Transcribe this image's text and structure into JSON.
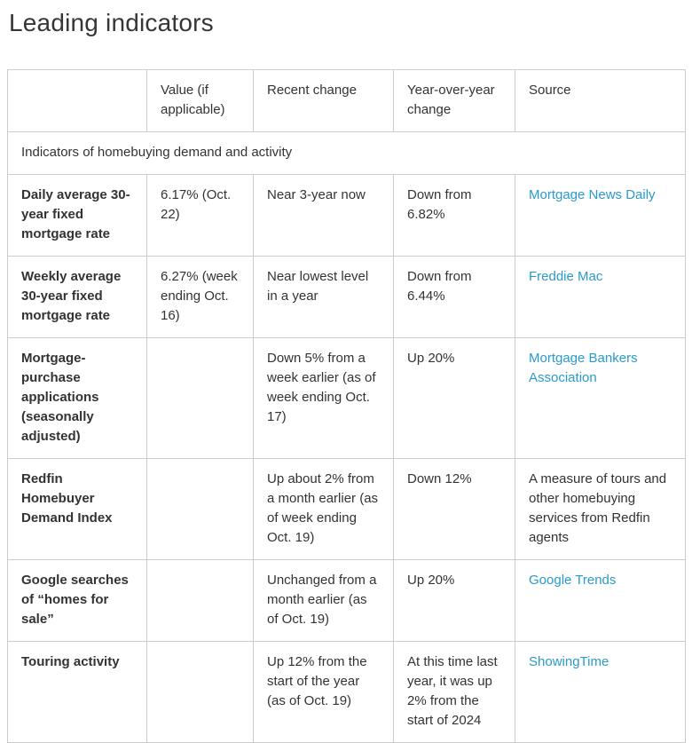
{
  "page": {
    "title": "Leading indicators"
  },
  "colors": {
    "text": "#333333",
    "border": "#cccccc",
    "link": "#2b9ac9",
    "background": "#ffffff"
  },
  "table": {
    "caption": "Indicators of homebuying demand and activity",
    "columns": {
      "indicator": "",
      "value": "Value (if applicable)",
      "recent_change": "Recent change",
      "yoy_change": "Year-over-year change",
      "source": "Source"
    },
    "rows": [
      {
        "indicator": "Daily average 30-year fixed mortgage rate",
        "value": "6.17% (Oct. 22)",
        "recent_change": "Near 3-year now",
        "yoy_change": "Down from 6.82%",
        "source": "Mortgage News Daily",
        "source_is_link": true
      },
      {
        "indicator": "Weekly average 30-year fixed mortgage rate",
        "value": "6.27% (week ending Oct. 16)",
        "recent_change": "Near lowest level in a year",
        "yoy_change": "Down from 6.44%",
        "source": "Freddie Mac",
        "source_is_link": true
      },
      {
        "indicator": "Mortgage-purchase applications (seasonally adjusted)",
        "value": "",
        "recent_change": "Down 5% from a week earlier (as of week ending Oct. 17)",
        "yoy_change": "Up 20%",
        "source": "Mortgage Bankers Association",
        "source_is_link": true
      },
      {
        "indicator": "Redfin Homebuyer Demand Index",
        "value": "",
        "recent_change": "Up about 2% from a month earlier (as of week ending Oct. 19)",
        "yoy_change": "Down 12%",
        "source": "A measure of tours and other homebuying services from Redfin agents",
        "source_is_link": false
      },
      {
        "indicator": "Google searches of “homes for sale”",
        "value": "",
        "recent_change": "Unchanged from a month earlier (as of Oct. 19)",
        "yoy_change": "Up 20%",
        "source": "Google Trends",
        "source_is_link": true
      },
      {
        "indicator": "Touring activity",
        "value": "",
        "recent_change": "Up 12% from the start of the year (as of Oct. 19)",
        "yoy_change": "At this time last year, it was up 2% from the start of 2024",
        "source": "ShowingTime",
        "source_is_link": true
      }
    ]
  }
}
